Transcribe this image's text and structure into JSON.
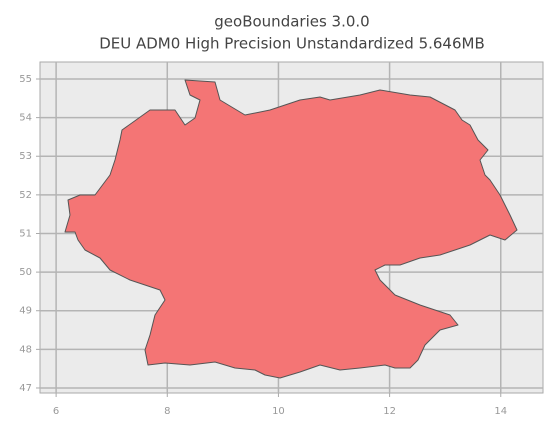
{
  "chart_data": {
    "type": "map",
    "title": "geoBoundaries 3.0.0",
    "subtitle": "DEU ADM0 High Precision Unstandardized 5.646MB",
    "xlim": [
      5.71,
      14.76
    ],
    "ylim": [
      46.87,
      55.44
    ],
    "xticks": [
      6,
      8,
      10,
      12,
      14
    ],
    "yticks": [
      47,
      48,
      49,
      50,
      51,
      52,
      53,
      54,
      55
    ],
    "grid": true,
    "color": "#f47575"
  }
}
